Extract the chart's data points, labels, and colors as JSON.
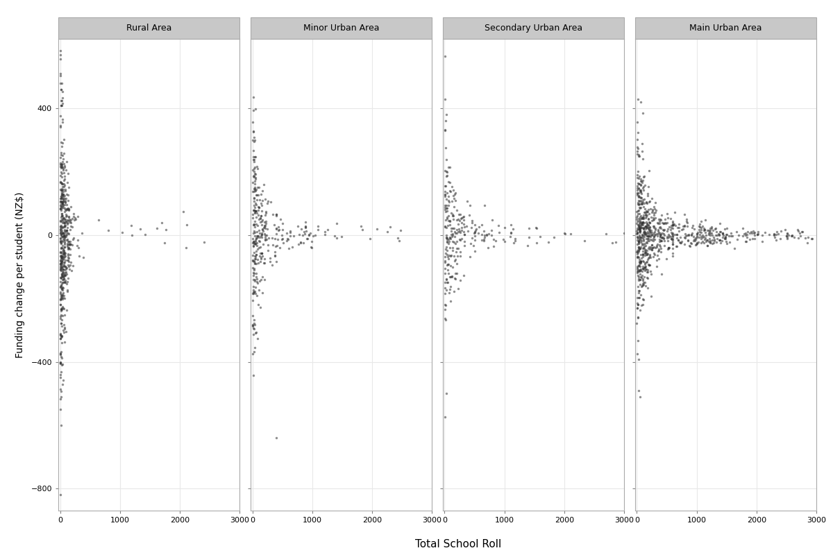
{
  "panels": [
    "Rural Area",
    "Minor Urban Area",
    "Secondary Urban Area",
    "Main Urban Area"
  ],
  "xlabel": "Total School Roll",
  "ylabel": "Funding change per student (NZ$)",
  "xlim": [
    -30,
    3000
  ],
  "ylim": [
    -870,
    620
  ],
  "yticks": [
    -800,
    -400,
    0,
    400
  ],
  "xticks": [
    0,
    1000,
    2000,
    3000
  ],
  "background_color": "#ffffff",
  "panel_header_color": "#c8c8c8",
  "grid_color": "#e8e8e8",
  "dot_color": "#333333",
  "dot_size": 6,
  "dot_alpha": 0.55,
  "seeds": {
    "Rural Area": 101,
    "Minor Urban Area": 202,
    "Secondary Urban Area": 303,
    "Main Urban Area": 404
  }
}
